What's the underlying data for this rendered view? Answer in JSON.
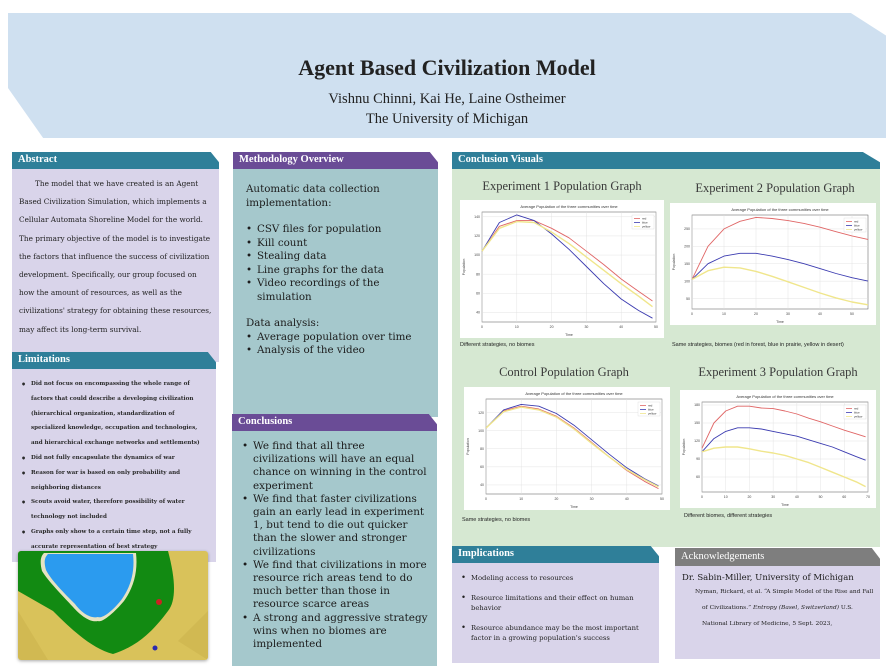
{
  "header": {
    "title": "Agent Based Civilization Model",
    "authors": "Vishnu Chinni, Kai He, Laine Ostheimer",
    "affiliation": "The University of Michigan",
    "color": "#cfe0f0"
  },
  "abstract": {
    "heading": "Abstract",
    "text": "The model that we have created is an Agent Based Civilization Simulation, which implements a Cellular Automata Shoreline Model for the world. The primary objective of the model is to investigate the factors that influence the success of civilization development. Specifically, our group focused on how the amount of resources, as well as the civilizations' strategy for obtaining these resources, may affect its long-term survival."
  },
  "limitations": {
    "heading": "Limitations",
    "items": [
      "Did not focus on encompassing the whole range of factors that could describe a developing civilization (hierarchical organization, standardization of specialized knowledge, occupation and technologies, and hierarchical exchange networks and settlements)",
      "Did not fully encapsulate the dynamics of war",
      " Reason for war is based on only probability and neighboring distances",
      "Scouts avoid water, therefore possibility of water technology not included",
      "Graphs only show to a certain time step, not a fully accurate representation of best strategy"
    ]
  },
  "simulation_image": {
    "label": "simulation-map",
    "colors": {
      "water": "#2b9bef",
      "shore": "#e6e3c3",
      "forest": "#128a12",
      "desert": "#d9c25a",
      "red_civ": "#cc2222",
      "blue_civ": "#2a2ab0"
    }
  },
  "methodology": {
    "heading": "Methodology Overview",
    "lead": "Automatic data collection implementation:",
    "items": [
      "CSV files for population",
      "Kill count",
      "Stealing data",
      "Line graphs for the data",
      "Video recordings of the simulation"
    ],
    "sub_lead": "Data analysis:",
    "sub_items": [
      "Average population over time",
      "Analysis of the video"
    ]
  },
  "conclusions": {
    "heading": "Conclusions",
    "items": [
      "We find that all three civilizations will have an equal chance on winning in the control experiment",
      "We find that faster civilizations gain an early lead in experiment 1, but tend to die out quicker than the slower and stronger civilizations",
      "We find that civilizations in more resource rich areas tend to do much better than those in resource scarce areas",
      "A strong and aggressive strategy wins when no biomes are implemented"
    ]
  },
  "visuals": {
    "heading": "Conclusion Visuals",
    "graphs": [
      {
        "title": "Experiment 1 Population Graph",
        "caption": "Different strategies, no biomes"
      },
      {
        "title": "Experiment 2 Population Graph",
        "caption": "Same strategies, biomes (red in forest, blue in prairie, yellow in desert)"
      },
      {
        "title": "Control Population Graph",
        "caption": "Same strategies, no biomes"
      },
      {
        "title": "Experiment 3 Population Graph",
        "caption": "Different biomes, different strategies"
      }
    ]
  },
  "chart_data": [
    {
      "type": "line",
      "title": "Average Population of the three communities over time",
      "panel_title": "Experiment 1 Population Graph",
      "xlabel": "Time",
      "ylabel": "Population",
      "x": [
        0,
        5,
        10,
        15,
        20,
        25,
        30,
        35,
        40,
        45,
        49
      ],
      "xticks": [
        0,
        10,
        20,
        30,
        40,
        50
      ],
      "ylim": [
        30,
        145
      ],
      "legend": [
        "red",
        "blue",
        "yellow"
      ],
      "legend_position": "upper right",
      "grid": true,
      "series": [
        {
          "name": "red",
          "color": "#e06666",
          "values": [
            104,
            130,
            136,
            136,
            128,
            118,
            104,
            90,
            75,
            62,
            52
          ]
        },
        {
          "name": "blue",
          "color": "#3b3bb0",
          "values": [
            104,
            134,
            142,
            136,
            122,
            106,
            88,
            70,
            54,
            42,
            34
          ]
        },
        {
          "name": "yellow",
          "color": "#f0e68c",
          "values": [
            104,
            128,
            135,
            134,
            124,
            112,
            98,
            84,
            70,
            57,
            46
          ]
        }
      ]
    },
    {
      "type": "line",
      "title": "Average Population of the three communities over time",
      "panel_title": "Experiment 2 Population Graph",
      "xlabel": "Time",
      "ylabel": "Population",
      "x": [
        0,
        5,
        10,
        15,
        20,
        25,
        30,
        35,
        40,
        45,
        50,
        55
      ],
      "xticks": [
        0,
        10,
        20,
        30,
        40,
        50
      ],
      "yticks": [
        50,
        100,
        150,
        200,
        250
      ],
      "ylim": [
        20,
        290
      ],
      "legend": [
        "red",
        "blue",
        "yellow"
      ],
      "legend_position": "upper right",
      "grid": true,
      "series": [
        {
          "name": "red",
          "color": "#e06666",
          "values": [
            105,
            200,
            250,
            272,
            283,
            280,
            274,
            266,
            255,
            242,
            230,
            220
          ]
        },
        {
          "name": "blue",
          "color": "#3b3bb0",
          "values": [
            105,
            150,
            172,
            180,
            180,
            172,
            162,
            150,
            136,
            122,
            110,
            100
          ]
        },
        {
          "name": "yellow",
          "color": "#f0e68c",
          "values": [
            105,
            130,
            140,
            138,
            128,
            114,
            98,
            82,
            66,
            52,
            40,
            32
          ]
        }
      ]
    },
    {
      "type": "line",
      "title": "Average Population of the three communities over time",
      "panel_title": "Control Population Graph",
      "xlabel": "Time",
      "ylabel": "Population",
      "x": [
        0,
        5,
        10,
        15,
        20,
        25,
        30,
        35,
        40,
        45,
        49
      ],
      "xticks": [
        0,
        10,
        20,
        30,
        40,
        50
      ],
      "yticks": [
        40,
        60,
        80,
        100,
        120
      ],
      "ylim": [
        30,
        135
      ],
      "legend": [
        "red",
        "blue",
        "yellow"
      ],
      "legend_position": "upper right",
      "grid": true,
      "series": [
        {
          "name": "red",
          "color": "#e06666",
          "values": [
            103,
            122,
            127,
            124,
            116,
            103,
            87,
            71,
            56,
            44,
            36
          ]
        },
        {
          "name": "blue",
          "color": "#3b3bb0",
          "values": [
            103,
            123,
            129,
            127,
            119,
            106,
            90,
            74,
            59,
            47,
            39
          ]
        },
        {
          "name": "yellow",
          "color": "#f0e68c",
          "values": [
            103,
            121,
            126,
            123,
            115,
            102,
            86,
            71,
            57,
            46,
            38
          ]
        }
      ]
    },
    {
      "type": "line",
      "title": "Average Population of the three communities over time",
      "panel_title": "Experiment 3 Population Graph",
      "xlabel": "Time",
      "ylabel": "Population",
      "x": [
        0,
        5,
        10,
        15,
        20,
        25,
        30,
        35,
        40,
        45,
        50,
        55,
        60,
        65,
        69
      ],
      "xticks": [
        0,
        10,
        20,
        30,
        40,
        50,
        60,
        70
      ],
      "ylim": [
        35,
        185
      ],
      "legend": [
        "red",
        "blue",
        "yellow"
      ],
      "legend_position": "upper right",
      "grid": true,
      "series": [
        {
          "name": "red",
          "color": "#e06666",
          "values": [
            108,
            150,
            170,
            178,
            178,
            175,
            174,
            170,
            165,
            158,
            152,
            145,
            138,
            132,
            127
          ]
        },
        {
          "name": "blue",
          "color": "#3b3bb0",
          "values": [
            102,
            124,
            136,
            142,
            142,
            140,
            136,
            132,
            128,
            122,
            116,
            110,
            102,
            94,
            88
          ]
        },
        {
          "name": "yellow",
          "color": "#f0e68c",
          "values": [
            102,
            108,
            110,
            110,
            107,
            103,
            100,
            96,
            90,
            84,
            76,
            68,
            60,
            52,
            44
          ]
        }
      ]
    }
  ],
  "implications": {
    "heading": "Implications",
    "items": [
      "Modeling access to resources",
      "Resource limitations and their effect on human behavior",
      "Resource abundance may be the most important factor in a growing population's success"
    ]
  },
  "acknowledgements": {
    "heading": "Acknowledgements",
    "person": "Dr. Sabin-Miller, University of Michigan",
    "citation_pre": "Nyman, Rickard, et al. “A Simple Model of the Rise and Fall of Civilizations.” ",
    "citation_journal": "Entropy (Basel, Switzerland)",
    "citation_post": " U.S. National Library of Medicine, 5 Sept. 2023,",
    "citation_line1": "Nyman, Rickard, et al. “A Simple Model of the Rise and Fall",
    "citation_line2a": "of Civilizations.” ",
    "citation_line2b": "Entropy (Basel, Switzerland)",
    "citation_line2c": " U.S.",
    "citation_line3": "National Library of Medicine, 5 Sept. 2023,"
  },
  "colors": {
    "teal_header": "#2f7f99",
    "purple_header": "#6a4c96",
    "gray_header": "#7e7e7e",
    "lavender_body": "#d9d4ea",
    "blue_body": "#a5c8cc",
    "green_body": "#d6e8d2"
  }
}
